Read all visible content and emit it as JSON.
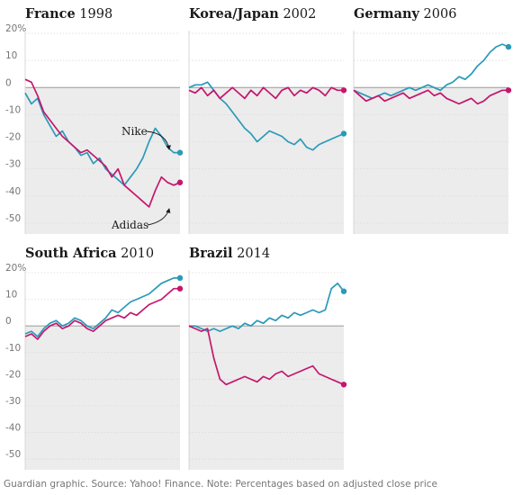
{
  "chart_data": [
    {
      "type": "line",
      "title": "France",
      "year": "1998",
      "x": [
        0,
        2,
        4,
        6,
        8,
        10,
        12,
        14,
        16,
        18,
        20,
        22,
        24,
        26,
        28,
        30,
        32,
        34,
        36,
        38,
        40,
        42,
        44,
        46,
        48,
        50
      ],
      "series": [
        {
          "name": "Nike",
          "color": "#2a9ab9",
          "values": [
            -2,
            -6,
            -4,
            -10,
            -14,
            -18,
            -16,
            -20,
            -22,
            -25,
            -24,
            -28,
            -26,
            -30,
            -32,
            -34,
            -36,
            -33,
            -30,
            -26,
            -20,
            -15,
            -18,
            -22,
            -24,
            -24
          ]
        },
        {
          "name": "Adidas",
          "color": "#c4176d",
          "values": [
            3,
            2,
            -3,
            -9,
            -12,
            -15,
            -18,
            -20,
            -22,
            -24,
            -23,
            -25,
            -27,
            -29,
            -33,
            -30,
            -36,
            -38,
            -40,
            -42,
            -44,
            -38,
            -33,
            -35,
            -36,
            -35
          ]
        }
      ],
      "annotations": [
        "Nike",
        "Adidas"
      ]
    },
    {
      "type": "line",
      "title": "Korea/Japan",
      "year": "2002",
      "x": [
        0,
        2,
        4,
        6,
        8,
        10,
        12,
        14,
        16,
        18,
        20,
        22,
        24,
        26,
        28,
        30,
        32,
        34,
        36,
        38,
        40,
        42,
        44,
        46,
        48,
        50
      ],
      "series": [
        {
          "name": "Nike",
          "color": "#2a9ab9",
          "values": [
            0,
            1,
            1,
            2,
            -1,
            -4,
            -6,
            -9,
            -12,
            -15,
            -17,
            -20,
            -18,
            -16,
            -17,
            -18,
            -20,
            -21,
            -19,
            -22,
            -23,
            -21,
            -20,
            -19,
            -18,
            -17
          ]
        },
        {
          "name": "Adidas",
          "color": "#c4176d",
          "values": [
            -1,
            -2,
            0,
            -3,
            -1,
            -4,
            -2,
            0,
            -2,
            -4,
            -1,
            -3,
            0,
            -2,
            -4,
            -1,
            0,
            -3,
            -1,
            -2,
            0,
            -1,
            -3,
            0,
            -1,
            -1
          ]
        }
      ]
    },
    {
      "type": "line",
      "title": "Germany",
      "year": "2006",
      "x": [
        0,
        2,
        4,
        6,
        8,
        10,
        12,
        14,
        16,
        18,
        20,
        22,
        24,
        26,
        28,
        30,
        32,
        34,
        36,
        38,
        40,
        42,
        44,
        46,
        48,
        50
      ],
      "series": [
        {
          "name": "Nike",
          "color": "#2a9ab9",
          "values": [
            -1,
            -2,
            -3,
            -4,
            -3,
            -2,
            -3,
            -2,
            -1,
            0,
            -1,
            0,
            1,
            0,
            -1,
            1,
            2,
            4,
            3,
            5,
            8,
            10,
            13,
            15,
            16,
            15
          ]
        },
        {
          "name": "Adidas",
          "color": "#c4176d",
          "values": [
            -1,
            -3,
            -5,
            -4,
            -3,
            -5,
            -4,
            -3,
            -2,
            -4,
            -3,
            -2,
            -1,
            -3,
            -2,
            -4,
            -5,
            -6,
            -5,
            -4,
            -6,
            -5,
            -3,
            -2,
            -1,
            -1
          ]
        }
      ]
    },
    {
      "type": "line",
      "title": "South Africa",
      "year": "2010",
      "x": [
        0,
        2,
        4,
        6,
        8,
        10,
        12,
        14,
        16,
        18,
        20,
        22,
        24,
        26,
        28,
        30,
        32,
        34,
        36,
        38,
        40,
        42,
        44,
        46,
        48,
        50
      ],
      "series": [
        {
          "name": "Nike",
          "color": "#2a9ab9",
          "values": [
            -3,
            -2,
            -4,
            -1,
            1,
            2,
            0,
            1,
            3,
            2,
            0,
            -1,
            1,
            3,
            6,
            5,
            7,
            9,
            10,
            11,
            12,
            14,
            16,
            17,
            18,
            18
          ]
        },
        {
          "name": "Adidas",
          "color": "#c4176d",
          "values": [
            -4,
            -3,
            -5,
            -2,
            0,
            1,
            -1,
            0,
            2,
            1,
            -1,
            -2,
            0,
            2,
            3,
            4,
            3,
            5,
            4,
            6,
            8,
            9,
            10,
            12,
            14,
            14
          ]
        }
      ]
    },
    {
      "type": "line",
      "title": "Brazil",
      "year": "2014",
      "x": [
        0,
        2,
        4,
        6,
        8,
        10,
        12,
        14,
        16,
        18,
        20,
        22,
        24,
        26,
        28,
        30,
        32,
        34,
        36,
        38,
        40,
        42,
        44,
        46,
        48,
        50
      ],
      "series": [
        {
          "name": "Nike",
          "color": "#2a9ab9",
          "values": [
            0,
            0,
            -1,
            -2,
            -1,
            -2,
            -1,
            0,
            -1,
            1,
            0,
            2,
            1,
            3,
            2,
            4,
            3,
            5,
            4,
            5,
            6,
            5,
            6,
            14,
            16,
            13
          ]
        },
        {
          "name": "Adidas",
          "color": "#c4176d",
          "values": [
            0,
            -1,
            -2,
            -1,
            -12,
            -20,
            -22,
            -21,
            -20,
            -19,
            -20,
            -21,
            -19,
            -20,
            -18,
            -17,
            -19,
            -18,
            -17,
            -16,
            -15,
            -18,
            -19,
            -20,
            -21,
            -22
          ]
        }
      ]
    }
  ],
  "axes": {
    "y_ticks": [
      20,
      10,
      0,
      -10,
      -20,
      -30,
      -40,
      -50
    ],
    "y_tick_labels": [
      "20%",
      "10",
      "0",
      "-10",
      "-20",
      "-30",
      "-40",
      "-50"
    ],
    "ylim": [
      -54,
      21
    ]
  },
  "footer": "Guardian graphic. Source: Yahoo! Finance. Note: Percentages based on adjusted close price"
}
